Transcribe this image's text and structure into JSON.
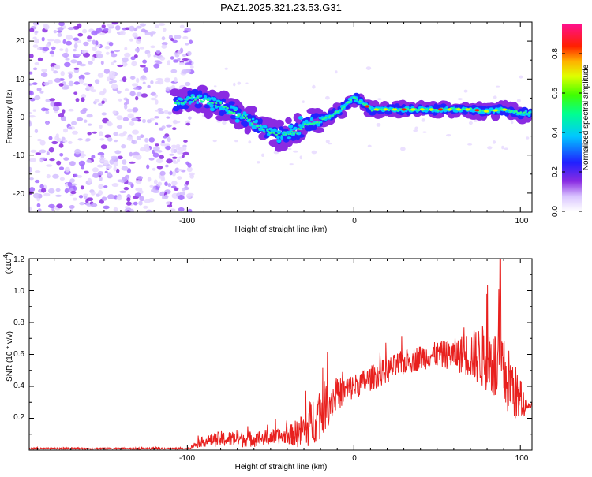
{
  "title": "PAZ1.2025.321.23.53.G31",
  "top_plot": {
    "xlabel": "Height of straight line (km)",
    "ylabel": "Frequency (Hz)",
    "xticks": [
      "-100",
      "0",
      "100"
    ],
    "yticks": [
      "20",
      "10",
      "0",
      "-10",
      "-20"
    ],
    "colorbar_label": "Normalized spectral amplitude",
    "colorbar_ticks": [
      "0.0",
      "0.2",
      "0.4",
      "0.6",
      "0.8"
    ]
  },
  "bottom_plot": {
    "xlabel": "Height of straight line (km)",
    "ylabel": "SNR (10 * v/v)",
    "scale_label": "(x10",
    "scale_exp": "4",
    "scale_close": ")",
    "xticks": [
      "-100",
      "0",
      "100"
    ],
    "yticks": [
      "1.2",
      "1.0",
      "0.8",
      "0.6",
      "0.4",
      "0.2"
    ]
  },
  "chart_data": [
    {
      "type": "heatmap",
      "title": "PAZ1.2025.321.23.53.G31",
      "xlabel": "Height of straight line (km)",
      "ylabel": "Frequency (Hz)",
      "xlim": [
        -195,
        107
      ],
      "ylim": [
        -25,
        25
      ],
      "colorbar": {
        "label": "Normalized spectral amplitude",
        "range": [
          0,
          0.95
        ]
      },
      "ridge": {
        "x": [
          -105,
          -95,
          -85,
          -75,
          -65,
          -55,
          -45,
          -35,
          -28,
          -22,
          -15,
          -8,
          -3,
          0,
          5,
          10,
          20,
          30,
          40,
          50,
          60,
          70,
          80,
          90,
          100,
          107
        ],
        "y": [
          4,
          5,
          4,
          2,
          0,
          -3,
          -5,
          -4,
          -2,
          -1,
          0,
          2,
          4,
          5,
          4,
          2,
          2,
          2,
          2,
          2,
          2,
          2,
          1.5,
          2,
          1,
          1
        ]
      }
    },
    {
      "type": "line",
      "xlabel": "Height of straight line (km)",
      "ylabel": "SNR (10 * v/v)",
      "xlim": [
        -195,
        107
      ],
      "ylim": [
        0,
        1.2
      ],
      "y_scale": 10000,
      "envelope": {
        "x": [
          -195,
          -100,
          -92,
          -80,
          -60,
          -40,
          -30,
          -20,
          -10,
          0,
          10,
          20,
          30,
          40,
          50,
          60,
          70,
          80,
          88,
          95,
          100,
          104,
          107
        ],
        "mean": [
          0.01,
          0.01,
          0.05,
          0.07,
          0.07,
          0.09,
          0.12,
          0.25,
          0.35,
          0.4,
          0.45,
          0.5,
          0.55,
          0.58,
          0.6,
          0.6,
          0.6,
          0.58,
          0.5,
          0.4,
          0.3,
          0.28,
          0.28
        ],
        "spread": [
          0.005,
          0.005,
          0.03,
          0.05,
          0.05,
          0.05,
          0.12,
          0.18,
          0.1,
          0.08,
          0.08,
          0.08,
          0.08,
          0.08,
          0.08,
          0.1,
          0.15,
          0.22,
          0.25,
          0.2,
          0.15,
          0.02,
          0.02
        ]
      },
      "peak": {
        "x": 88,
        "y": 1.2
      }
    }
  ]
}
